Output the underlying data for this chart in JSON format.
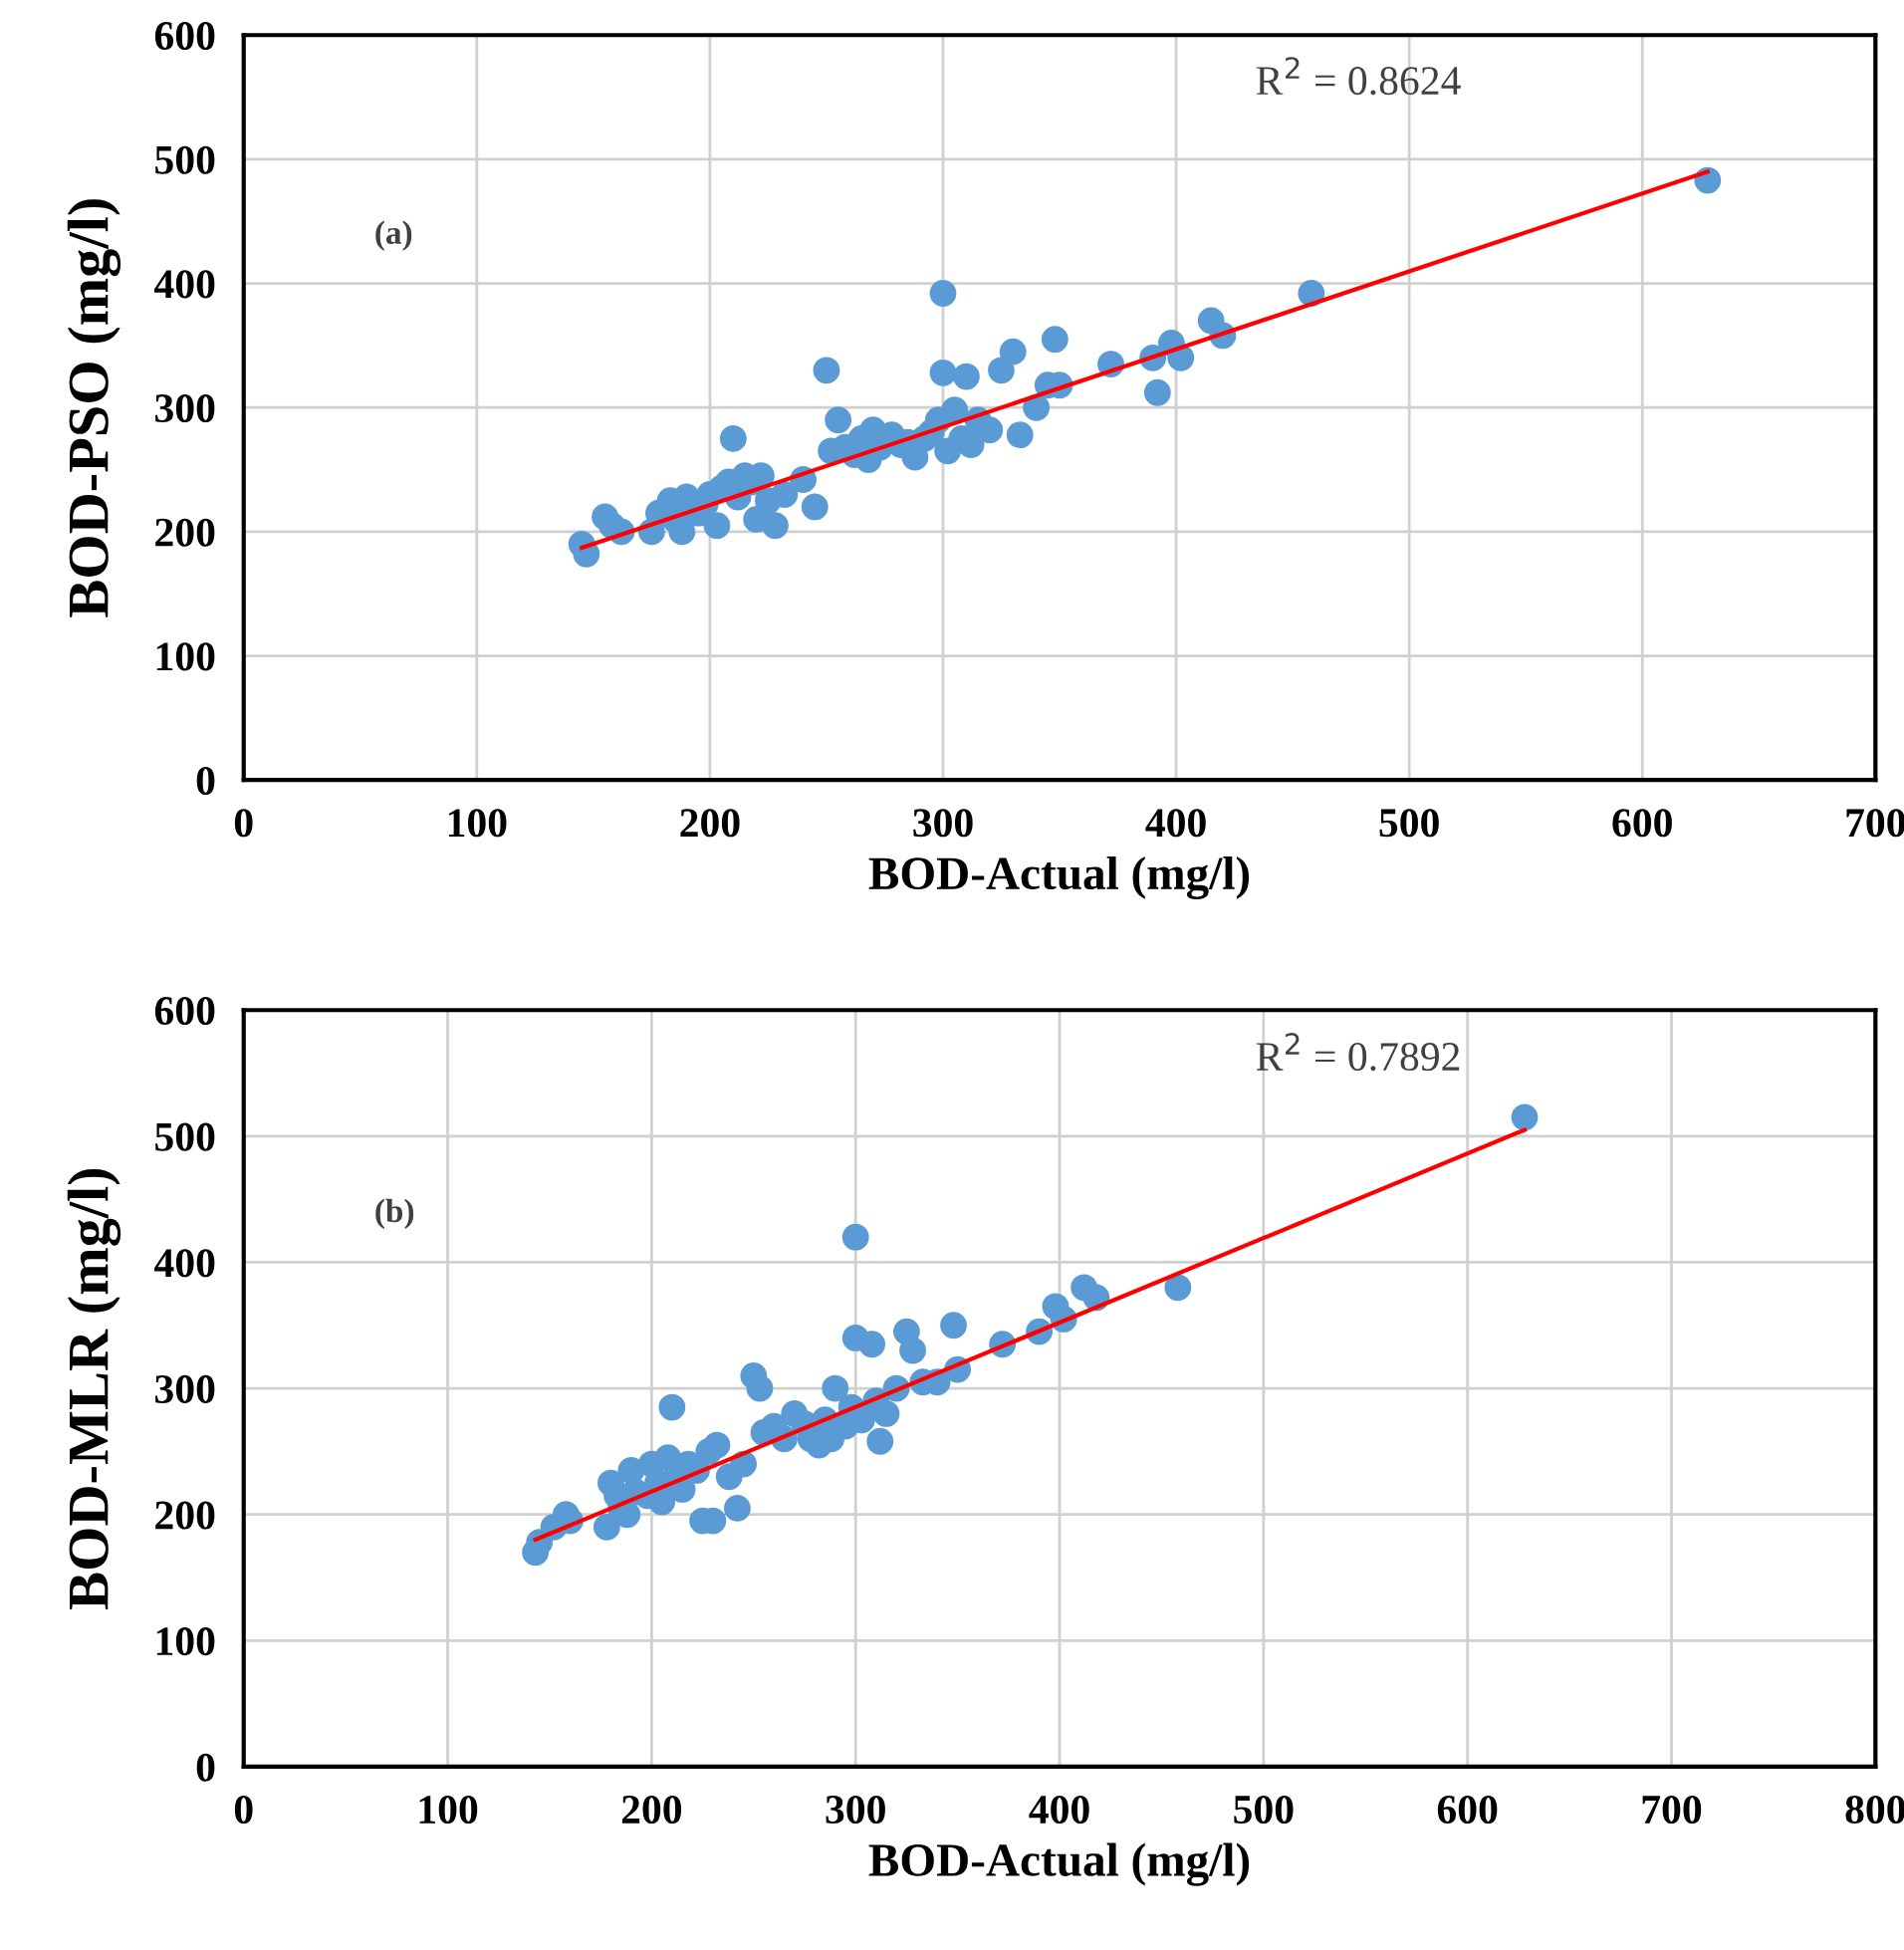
{
  "chart_data": [
    {
      "type": "scatter",
      "xlabel": "BOD-Actual (mg/l)",
      "ylabel": "BOD-PSO (mg/l)",
      "xlim": [
        0,
        700
      ],
      "ylim": [
        0,
        600
      ],
      "xticks": [
        0,
        100,
        200,
        300,
        400,
        500,
        600,
        700
      ],
      "yticks": [
        0,
        100,
        200,
        300,
        400,
        500,
        600
      ],
      "grid": true,
      "marker": "circle",
      "annotations": [
        "(a)",
        "R$^{2}$ = 0.8624"
      ],
      "series": [
        {
          "color": "#5b9bd5",
          "x": [
            145,
            147,
            155,
            158,
            162,
            175,
            178,
            183,
            185,
            188,
            190,
            195,
            198,
            200,
            203,
            205,
            208,
            210,
            212,
            215,
            218,
            220,
            222,
            225,
            228,
            232,
            240,
            245,
            250,
            252,
            255,
            258,
            262,
            265,
            268,
            270,
            273,
            278,
            282,
            285,
            288,
            292,
            295,
            298,
            300,
            300,
            302,
            305,
            308,
            310,
            312,
            315,
            320,
            325,
            330,
            333,
            340,
            345,
            348,
            350,
            372,
            390,
            392,
            398,
            402,
            415,
            420,
            458,
            628
          ],
          "values": [
            190,
            182,
            212,
            205,
            200,
            200,
            215,
            225,
            210,
            200,
            228,
            215,
            222,
            230,
            205,
            235,
            240,
            275,
            228,
            245,
            240,
            210,
            245,
            225,
            205,
            230,
            242,
            220,
            330,
            265,
            290,
            268,
            262,
            275,
            258,
            282,
            268,
            278,
            270,
            272,
            260,
            275,
            280,
            290,
            392,
            328,
            265,
            298,
            275,
            325,
            270,
            290,
            282,
            330,
            345,
            278,
            300,
            318,
            355,
            318,
            335,
            340,
            312,
            352,
            340,
            370,
            358,
            392,
            483
          ]
        },
        {
          "type": "line",
          "color": "#ff0000",
          "marker": "none",
          "x": [
            145,
            628
          ],
          "values": [
            187,
            490
          ]
        }
      ]
    },
    {
      "type": "scatter",
      "xlabel": "BOD-Actual (mg/l)",
      "ylabel": "BOD-MLR (mg/l)",
      "xlim": [
        0,
        800
      ],
      "ylim": [
        0,
        600
      ],
      "xticks": [
        0,
        100,
        200,
        300,
        400,
        500,
        600,
        700,
        800
      ],
      "yticks": [
        0,
        100,
        200,
        300,
        400,
        500,
        600
      ],
      "grid": true,
      "marker": "circle",
      "annotations": [
        "(b)",
        "R$^{2}$ = 0.7892"
      ],
      "series": [
        {
          "color": "#5b9bd5",
          "x": [
            143,
            145,
            152,
            158,
            160,
            178,
            180,
            183,
            185,
            188,
            190,
            192,
            198,
            200,
            203,
            205,
            208,
            210,
            212,
            215,
            218,
            222,
            225,
            228,
            230,
            232,
            238,
            242,
            245,
            250,
            253,
            255,
            260,
            265,
            270,
            275,
            278,
            282,
            285,
            288,
            290,
            295,
            298,
            300,
            300,
            303,
            308,
            310,
            312,
            315,
            320,
            325,
            328,
            333,
            340,
            348,
            350,
            372,
            390,
            398,
            402,
            412,
            418,
            458,
            628
          ],
          "values": [
            170,
            178,
            190,
            200,
            195,
            190,
            225,
            215,
            205,
            200,
            235,
            218,
            215,
            240,
            225,
            210,
            245,
            285,
            230,
            220,
            240,
            235,
            195,
            250,
            195,
            255,
            230,
            205,
            240,
            310,
            300,
            265,
            270,
            260,
            280,
            272,
            260,
            255,
            275,
            260,
            300,
            270,
            285,
            420,
            340,
            275,
            335,
            290,
            258,
            280,
            300,
            345,
            330,
            305,
            305,
            350,
            315,
            335,
            345,
            365,
            355,
            380,
            372,
            380,
            515
          ]
        },
        {
          "type": "line",
          "color": "#ff0000",
          "marker": "none",
          "x": [
            143,
            628
          ],
          "values": [
            180,
            505
          ]
        }
      ]
    }
  ]
}
